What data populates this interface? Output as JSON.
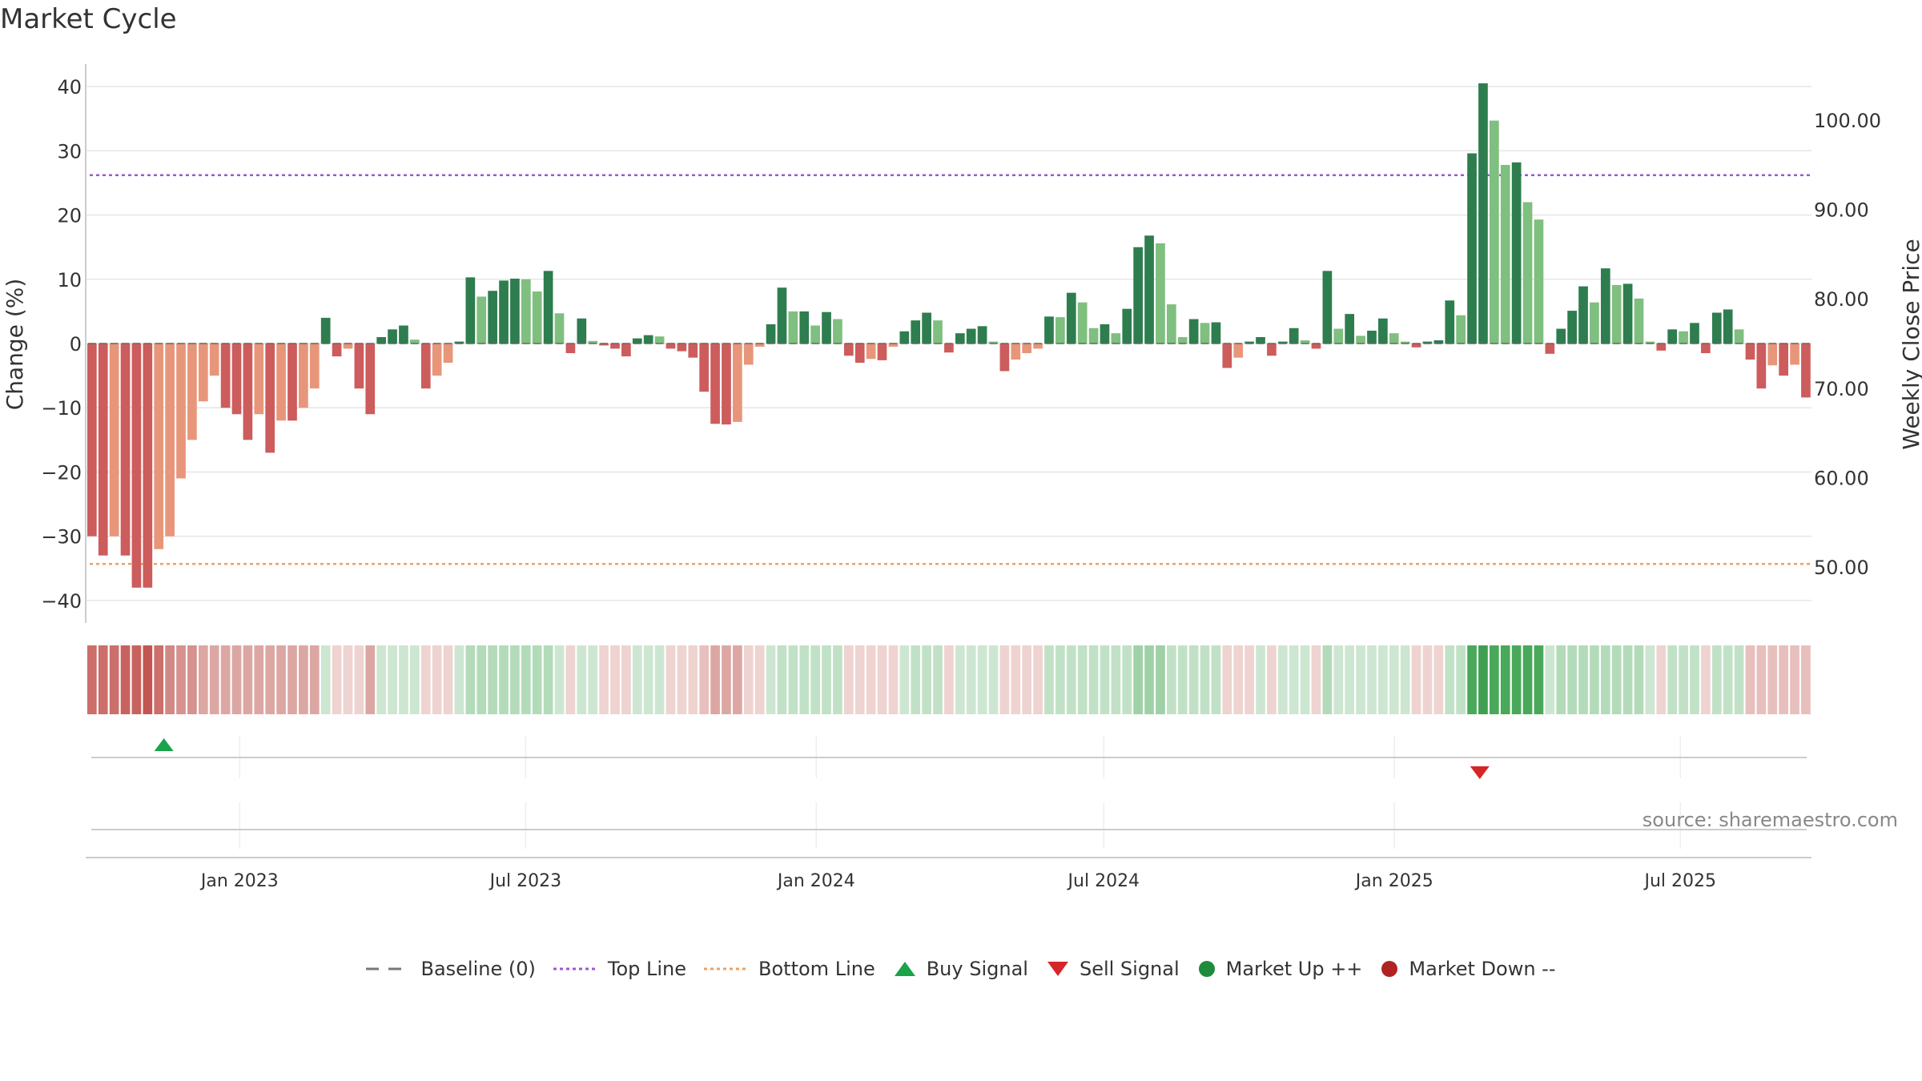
{
  "chart_data": {
    "type": "bar",
    "title": "Market Cycle",
    "ylabel": "Change (%)",
    "y2label": "Weekly Close Price",
    "ylim": [
      -43.5,
      43.5
    ],
    "y2lim": [
      43.7,
      106.3
    ],
    "yticks": [
      40,
      30,
      20,
      10,
      0,
      -10,
      -20,
      -30,
      -40
    ],
    "ytick_labels": [
      "40",
      "30",
      "20",
      "10",
      "0",
      "−10",
      "−20",
      "−30",
      "−40"
    ],
    "y2ticks": [
      100,
      90,
      80,
      70,
      60,
      50
    ],
    "y2tick_labels": [
      "100.00",
      "90.00",
      "80.00",
      "70.00",
      "60.00",
      "50.00"
    ],
    "x_range": [
      "2022-09-26",
      "2025-09-22"
    ],
    "xticks": [
      {
        "label": "Jan 2023",
        "date": "2023-01-01"
      },
      {
        "label": "Jul 2023",
        "date": "2023-07-01"
      },
      {
        "label": "Jan 2024",
        "date": "2024-01-01"
      },
      {
        "label": "Jul 2024",
        "date": "2024-07-01"
      },
      {
        "label": "Jan 2025",
        "date": "2025-01-01"
      },
      {
        "label": "Jul 2025",
        "date": "2025-07-01"
      }
    ],
    "top_line": 26.2,
    "bottom_line": -34.3,
    "baseline": 0,
    "start_week": "2022-09-26",
    "weekly_change": [
      -30,
      -33,
      -30,
      -33,
      -38,
      -38,
      -32,
      -30,
      -21,
      -15,
      -9,
      -5,
      -10,
      -11,
      -15,
      -11,
      -17,
      -12,
      -12,
      -10,
      -7,
      4,
      -2,
      -0.8,
      -7,
      -11,
      1,
      2.2,
      2.8,
      0.6,
      -7,
      -5,
      -3,
      0.3,
      10.3,
      7.3,
      8.2,
      9.8,
      10.1,
      10,
      8.1,
      11.3,
      4.7,
      -1.5,
      3.9,
      0.4,
      -0.3,
      -0.8,
      -2,
      0.8,
      1.3,
      1.1,
      -0.8,
      -1.2,
      -2.2,
      -7.5,
      -12.5,
      -12.6,
      -12.2,
      -3.3,
      -0.5,
      3,
      8.7,
      5,
      5,
      2.8,
      4.9,
      3.8,
      -1.9,
      -3,
      -2.4,
      -2.6,
      -0.5,
      1.9,
      3.6,
      4.8,
      3.6,
      -1.4,
      1.6,
      2.3,
      2.7,
      0.3,
      -4.3,
      -2.5,
      -1.5,
      -0.8,
      4.2,
      4.1,
      7.9,
      6.4,
      2.4,
      3,
      1.6,
      5.4,
      15,
      16.8,
      15.6,
      6.1,
      1,
      3.8,
      3.2,
      3.3,
      -3.8,
      -2.2,
      0.3,
      1,
      -1.9,
      0.3,
      2.4,
      0.5,
      -0.8,
      11.3,
      2.3,
      4.6,
      1.2,
      2,
      3.9,
      1.6,
      0.3,
      -0.6,
      0.3,
      0.5,
      6.7,
      4.4,
      29.6,
      40.5,
      34.7,
      27.8,
      28.2,
      22,
      19.3,
      -1.6,
      2.3,
      5.1,
      8.9,
      6.4,
      11.7,
      9.1,
      9.3,
      7,
      0.3,
      -1.1,
      2.2,
      1.9,
      3.2,
      -1.5,
      4.8,
      5.3,
      2.2,
      -2.5,
      -7,
      -3.4,
      -5,
      -3.3,
      -8.4
    ],
    "cycle_colors": [
      "#cc6e6a",
      "#cc6e6a",
      "#cc6e6a",
      "#c8625e",
      "#c8625e",
      "#c35652",
      "#cc6e6a",
      "#d28884",
      "#d5928e",
      "#d5928e",
      "#dca7a3",
      "#dca7a3",
      "#dca7a3",
      "#dca7a3",
      "#dca7a3",
      "#dca7a3",
      "#dca7a3",
      "#dca7a3",
      "#dca7a3",
      "#dca7a3",
      "#dca7a3",
      "#cde6d1",
      "#eed3d1",
      "#eed3d1",
      "#eed3d1",
      "#dca7a3",
      "#cde6d1",
      "#cde6d1",
      "#cde6d1",
      "#cde6d1",
      "#eed3d1",
      "#eed3d1",
      "#eed3d1",
      "#cde6d1",
      "#b3dbb9",
      "#b3dbb9",
      "#b3dbb9",
      "#b3dbb9",
      "#b3dbb9",
      "#b3dbb9",
      "#b3dbb9",
      "#b3dbb9",
      "#cde6d1",
      "#eed3d1",
      "#cde6d1",
      "#cde6d1",
      "#eed3d1",
      "#eed3d1",
      "#eed3d1",
      "#cde6d1",
      "#cde6d1",
      "#cde6d1",
      "#eed3d1",
      "#eed3d1",
      "#eed3d1",
      "#e7bfbc",
      "#dca7a3",
      "#dca7a3",
      "#dca7a3",
      "#eed3d1",
      "#eed3d1",
      "#cde6d1",
      "#c1e1c6",
      "#c1e1c6",
      "#c1e1c6",
      "#c1e1c6",
      "#c1e1c6",
      "#c1e1c6",
      "#eed3d1",
      "#eed3d1",
      "#eed3d1",
      "#eed3d1",
      "#eed3d1",
      "#cde6d1",
      "#c1e1c6",
      "#c1e1c6",
      "#c1e1c6",
      "#eed3d1",
      "#cde6d1",
      "#cde6d1",
      "#cde6d1",
      "#cde6d1",
      "#eed3d1",
      "#eed3d1",
      "#eed3d1",
      "#eed3d1",
      "#c1e1c6",
      "#c1e1c6",
      "#c1e1c6",
      "#c1e1c6",
      "#c1e1c6",
      "#c1e1c6",
      "#c1e1c6",
      "#c1e1c6",
      "#9fd1a7",
      "#9fd1a7",
      "#9fd1a7",
      "#c1e1c6",
      "#c1e1c6",
      "#c1e1c6",
      "#c1e1c6",
      "#c1e1c6",
      "#eed3d1",
      "#eed3d1",
      "#eed3d1",
      "#cde6d1",
      "#eed3d1",
      "#cde6d1",
      "#cde6d1",
      "#cde6d1",
      "#eed3d1",
      "#b3dbb9",
      "#cde6d1",
      "#cde6d1",
      "#cde6d1",
      "#cde6d1",
      "#cde6d1",
      "#cde6d1",
      "#cde6d1",
      "#eed3d1",
      "#eed3d1",
      "#eed3d1",
      "#c1e1c6",
      "#c1e1c6",
      "#4aa85a",
      "#3f9f50",
      "#4aa85a",
      "#4aa85a",
      "#4aa85a",
      "#4aa85a",
      "#4aa85a",
      "#cde6d1",
      "#b3dbb9",
      "#b3dbb9",
      "#b3dbb9",
      "#b3dbb9",
      "#b3dbb9",
      "#b3dbb9",
      "#b3dbb9",
      "#b3dbb9",
      "#cde6d1",
      "#eed3d1",
      "#c1e1c6",
      "#c1e1c6",
      "#c1e1c6",
      "#eed3d1",
      "#c1e1c6",
      "#c1e1c6",
      "#c1e1c6",
      "#e7bfbc",
      "#e7bfbc",
      "#e7bfbc",
      "#e7bfbc",
      "#e7bfbc",
      "#e7bfbc"
    ],
    "buy_signals": [
      "2022-11-14"
    ],
    "sell_signals": [
      "2025-02-24"
    ],
    "colors": {
      "up_strong": "#2e7d4f",
      "up_weak": "#7fbf7f",
      "down_strong": "#cd5c5c",
      "down_weak": "#e8967a",
      "top_line": "#9b59d0",
      "bottom_line": "#f0a060",
      "buy": "#1aa34a",
      "sell": "#d62728",
      "market_up": "#1e8c3a",
      "market_down": "#b22222"
    },
    "legend": [
      {
        "key": "baseline",
        "label": "Baseline (0)"
      },
      {
        "key": "top",
        "label": "Top Line"
      },
      {
        "key": "bottom",
        "label": "Bottom Line"
      },
      {
        "key": "buy",
        "label": "Buy Signal"
      },
      {
        "key": "sell",
        "label": "Sell Signal"
      },
      {
        "key": "up",
        "label": "Market Up ++"
      },
      {
        "key": "down",
        "label": "Market Down --"
      }
    ]
  },
  "source_text": "source: sharemaestro.com"
}
